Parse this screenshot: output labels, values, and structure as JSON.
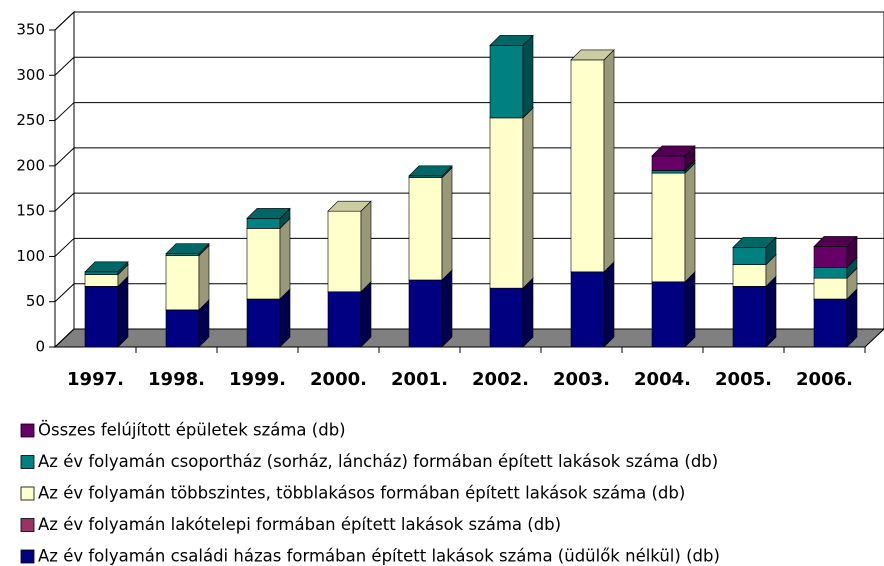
{
  "chart_data": {
    "type": "bar3d_stacked",
    "categories": [
      "1997.",
      "1998.",
      "1999.",
      "2000.",
      "2001.",
      "2002.",
      "2003.",
      "2004.",
      "2005.",
      "2006."
    ],
    "ylim": [
      0,
      350
    ],
    "yticks": [
      0,
      50,
      100,
      150,
      200,
      250,
      300,
      350
    ],
    "grid": true,
    "series": [
      {
        "name": "Az év folyamán családi házas formában épített lakások száma (üdülők nélkül) (db)",
        "color": "#000080",
        "values": [
          67,
          41,
          53,
          61,
          74,
          65,
          83,
          72,
          67,
          53
        ]
      },
      {
        "name": "Az év folyamán lakótelepi formában épített lakások száma (db)",
        "color": "#993366",
        "values": [
          0,
          0,
          0,
          0,
          0,
          0,
          0,
          0,
          0,
          0
        ]
      },
      {
        "name": "Az év folyamán többszintes, többlakásos formában épített lakások száma (db)",
        "color": "#ffffcc",
        "values": [
          13,
          60,
          78,
          89,
          113,
          188,
          234,
          120,
          24,
          23
        ]
      },
      {
        "name": "Az év folyamán csoportház (sorház, láncház) formában épített lakások száma (db)",
        "color": "#008080",
        "values": [
          3,
          2,
          11,
          0,
          2,
          80,
          0,
          3,
          19,
          12
        ]
      },
      {
        "name": "Összes felújított épületek száma (db)",
        "color": "#660066",
        "values": [
          0,
          0,
          0,
          0,
          0,
          0,
          0,
          16,
          0,
          23
        ]
      }
    ]
  }
}
